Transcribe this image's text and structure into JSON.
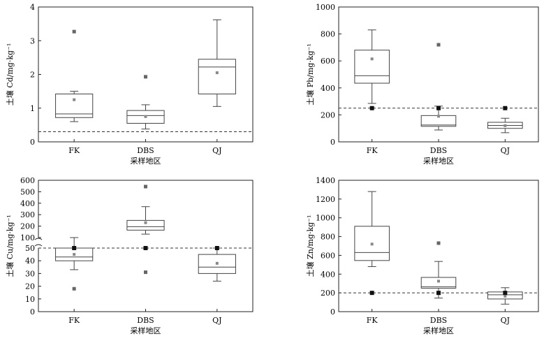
{
  "chart_data": [
    {
      "type": "box",
      "categories": [
        "FK",
        "DBS",
        "QJ"
      ],
      "xlabel": "采样地区",
      "ylabel": "土壤 Cd/mg·kg⁻¹",
      "ylim": [
        0,
        4
      ],
      "yticks": [
        0,
        1,
        2,
        3,
        4
      ],
      "reference_line": 0.3,
      "boxes": [
        {
          "q1": 0.72,
          "median": 0.83,
          "q3": 1.42,
          "whisker_low": 0.6,
          "whisker_high": 1.5,
          "mean": 1.25,
          "outliers": [
            3.27
          ]
        },
        {
          "q1": 0.55,
          "median": 0.78,
          "q3": 0.93,
          "whisker_low": 0.38,
          "whisker_high": 1.1,
          "mean": 0.75,
          "outliers": [
            1.93
          ]
        },
        {
          "q1": 1.42,
          "median": 2.22,
          "q3": 2.45,
          "whisker_low": 1.05,
          "whisker_high": 3.62,
          "mean": 2.05,
          "outliers": []
        }
      ]
    },
    {
      "type": "box",
      "categories": [
        "FK",
        "DBS",
        "QJ"
      ],
      "xlabel": "采样地区",
      "ylabel": "土壤 Pb/mg·kg⁻¹",
      "ylim": [
        0,
        1000
      ],
      "yticks": [
        0,
        200,
        400,
        600,
        800,
        1000
      ],
      "reference_line": 250,
      "boxes": [
        {
          "q1": 435,
          "median": 490,
          "q3": 680,
          "whisker_low": 285,
          "whisker_high": 830,
          "mean": 615,
          "outliers": [
            250
          ]
        },
        {
          "q1": 115,
          "median": 125,
          "q3": 195,
          "whisker_low": 88,
          "whisker_high": 265,
          "mean": 190,
          "outliers": [
            720,
            250
          ]
        },
        {
          "q1": 100,
          "median": 122,
          "q3": 145,
          "whisker_low": 68,
          "whisker_high": 175,
          "mean": 120,
          "outliers": [
            250
          ]
        }
      ]
    },
    {
      "type": "box",
      "categories": [
        "FK",
        "DBS",
        "QJ"
      ],
      "xlabel": "采样地区",
      "ylabel": "土壤 Cu/mg·kg⁻¹",
      "axis_break": true,
      "yticks": [
        0,
        10,
        20,
        30,
        40,
        50,
        100,
        200,
        300,
        400,
        500,
        600
      ],
      "reference_line": 50,
      "boxes": [
        {
          "q1": 40,
          "median": 43,
          "q3": 50,
          "whisker_low": 33,
          "whisker_high": 54,
          "mean": 45,
          "outliers": [
            18,
            50
          ]
        },
        {
          "q1": 165,
          "median": 195,
          "q3": 250,
          "whisker_low": 130,
          "whisker_high": 370,
          "mean": 230,
          "outliers": [
            545,
            50,
            31
          ]
        },
        {
          "q1": 30,
          "median": 35,
          "q3": 45,
          "whisker_low": 24,
          "whisker_high": 50,
          "mean": 38,
          "outliers": [
            50
          ]
        }
      ]
    },
    {
      "type": "box",
      "categories": [
        "FK",
        "DBS",
        "QJ"
      ],
      "xlabel": "采样地区",
      "ylabel": "土壤 Zn/mg·kg⁻¹",
      "ylim": [
        0,
        1400
      ],
      "yticks": [
        0,
        200,
        400,
        600,
        800,
        1000,
        1200,
        1400
      ],
      "reference_line": 200,
      "boxes": [
        {
          "q1": 545,
          "median": 630,
          "q3": 910,
          "whisker_low": 480,
          "whisker_high": 1280,
          "mean": 720,
          "outliers": [
            200
          ]
        },
        {
          "q1": 250,
          "median": 265,
          "q3": 365,
          "whisker_low": 145,
          "whisker_high": 535,
          "mean": 325,
          "outliers": [
            730,
            200
          ]
        },
        {
          "q1": 135,
          "median": 180,
          "q3": 210,
          "whisker_low": 80,
          "whisker_high": 255,
          "mean": 165,
          "outliers": [
            200
          ]
        }
      ]
    }
  ]
}
